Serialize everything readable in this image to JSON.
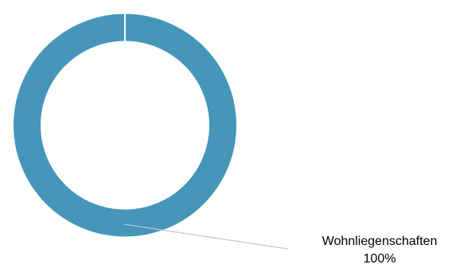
{
  "chart_data": {
    "type": "pie",
    "style": "donut",
    "categories": [
      "Wohnliegenschaften"
    ],
    "values": [
      100
    ],
    "value_labels": [
      "100%"
    ],
    "legend": "none",
    "colors": {
      "Wohnliegenschaften": "#4596b8",
      "separator": "#ffffff",
      "leader_line": "#b8c8d8"
    }
  }
}
